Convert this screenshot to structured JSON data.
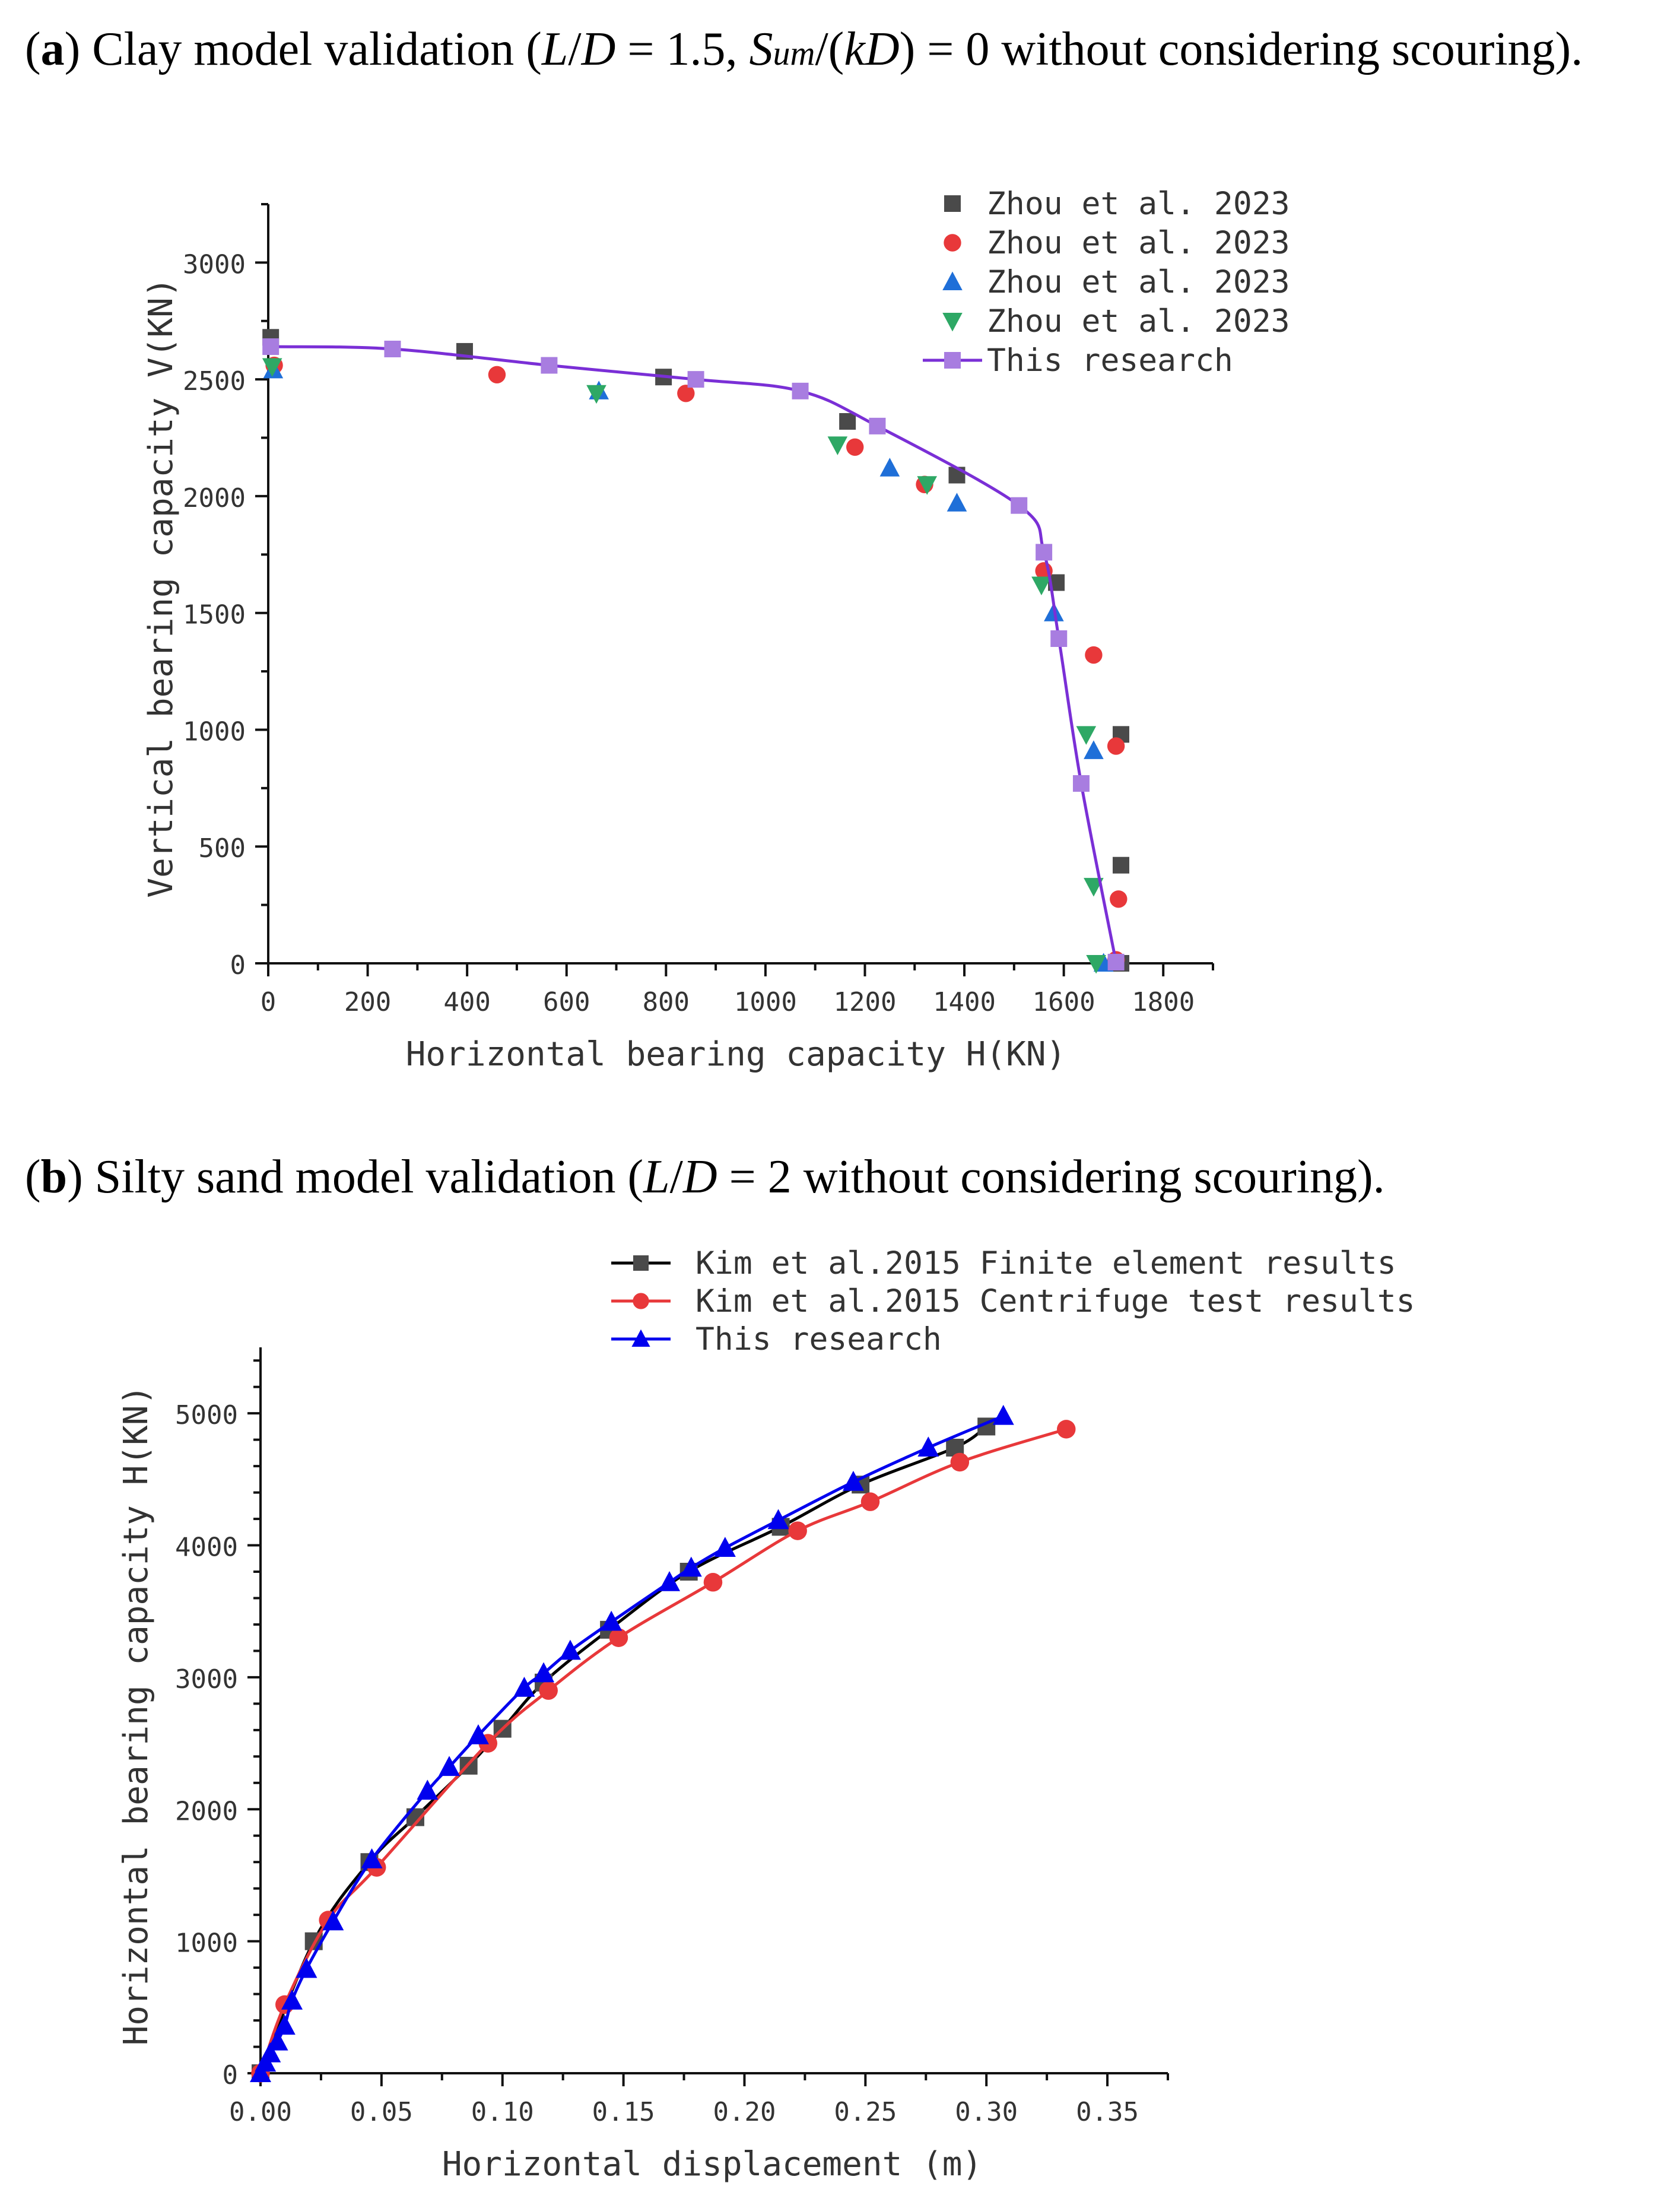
{
  "captions": {
    "a": {
      "label": "a",
      "part1": ") Clay model validation (",
      "L": "L",
      "slash1": "/",
      "D": "D",
      "part2": " = 1.5, ",
      "S": "S",
      "sub": "um",
      "part3": "/(",
      "kD": "kD",
      "part4": ") = 0 without considering scouring)."
    },
    "b": {
      "label": "b",
      "part1": ") Silty sand model validation (",
      "L": "L",
      "slash1": "/",
      "D": "D",
      "part2": " = 2 without considering scouring)."
    }
  },
  "chart_data": [
    {
      "type": "scatter",
      "xlabel": "Horizontal bearing capacity H(KN)",
      "ylabel": "Vertical bearing capacity V(KN)",
      "xlim": [
        0,
        1900
      ],
      "ylim": [
        0,
        3250
      ],
      "xticks": [
        0,
        200,
        400,
        600,
        800,
        1000,
        1200,
        1400,
        1600,
        1800
      ],
      "yticks": [
        0,
        500,
        1000,
        1500,
        2000,
        2500,
        3000
      ],
      "legend_position": "top-right",
      "series": [
        {
          "name": "Zhou et al. 2023",
          "marker": "square",
          "color": "#4a4a4a",
          "x": [
            5,
            395,
            795,
            1165,
            1385,
            1585,
            1715,
            1715,
            1715
          ],
          "y": [
            2680,
            2620,
            2510,
            2320,
            2090,
            1630,
            980,
            420,
            0
          ]
        },
        {
          "name": "Zhou et al. 2023",
          "marker": "circle",
          "color": "#e8383a",
          "x": [
            12,
            460,
            840,
            1180,
            1320,
            1560,
            1660,
            1705,
            1710,
            1705
          ],
          "y": [
            2560,
            2520,
            2440,
            2210,
            2050,
            1680,
            1320,
            930,
            275,
            15
          ]
        },
        {
          "name": "Zhou et al. 2023",
          "marker": "triangle-up",
          "color": "#1f6fd8",
          "x": [
            10,
            665,
            1250,
            1385,
            1580,
            1660,
            1680
          ],
          "y": [
            2540,
            2450,
            2120,
            1970,
            1500,
            910,
            0
          ]
        },
        {
          "name": "Zhou et al. 2023",
          "marker": "triangle-down",
          "color": "#2ea865",
          "x": [
            8,
            660,
            1145,
            1325,
            1555,
            1645,
            1660,
            1665
          ],
          "y": [
            2555,
            2440,
            2220,
            2050,
            1620,
            980,
            330,
            0
          ]
        },
        {
          "name": "This research",
          "marker": "square",
          "color": "#a87de0",
          "line_color": "#7a2fd6",
          "x": [
            5,
            250,
            565,
            860,
            1070,
            1225,
            1510,
            1560,
            1590,
            1635,
            1705
          ],
          "y": [
            2640,
            2630,
            2560,
            2500,
            2450,
            2300,
            1960,
            1760,
            1390,
            770,
            5
          ]
        }
      ]
    },
    {
      "type": "line",
      "xlabel": "Horizontal displacement (m)",
      "ylabel": "Horizontal bearing capacity H(KN)",
      "xlim": [
        0,
        0.375
      ],
      "ylim": [
        0,
        5500
      ],
      "xticks": [
        "0.00",
        "0.05",
        "0.10",
        "0.15",
        "0.20",
        "0.25",
        "0.30",
        "0.35"
      ],
      "yticks": [
        0,
        1000,
        2000,
        3000,
        4000,
        5000
      ],
      "legend_position": "top",
      "series": [
        {
          "name": "Kim et al.2015 Finite element results",
          "marker": "square",
          "color": "#4a4a4a",
          "line_color": "#000000",
          "x": [
            0.0,
            0.022,
            0.045,
            0.064,
            0.086,
            0.1,
            0.117,
            0.144,
            0.177,
            0.215,
            0.248,
            0.287,
            0.3
          ],
          "y": [
            0,
            1000,
            1600,
            1940,
            2330,
            2610,
            2960,
            3360,
            3800,
            4140,
            4460,
            4740,
            4900
          ]
        },
        {
          "name": "Kim et al.2015 Centrifuge test results",
          "marker": "circle",
          "color": "#e8383a",
          "line_color": "#e8383a",
          "x": [
            0.0,
            0.01,
            0.028,
            0.048,
            0.094,
            0.119,
            0.148,
            0.187,
            0.222,
            0.252,
            0.289,
            0.333
          ],
          "y": [
            0,
            520,
            1160,
            1560,
            2500,
            2900,
            3300,
            3720,
            4110,
            4330,
            4630,
            4880
          ]
        },
        {
          "name": "This research",
          "marker": "triangle-up",
          "color": "#0000ee",
          "line_color": "#0000ee",
          "x": [
            0.0,
            0.002,
            0.004,
            0.007,
            0.01,
            0.013,
            0.019,
            0.03,
            0.046,
            0.069,
            0.078,
            0.09,
            0.109,
            0.117,
            0.128,
            0.145,
            0.169,
            0.178,
            0.192,
            0.214,
            0.245,
            0.276,
            0.307
          ],
          "y": [
            0,
            80,
            150,
            240,
            360,
            550,
            790,
            1150,
            1620,
            2140,
            2320,
            2560,
            2920,
            3030,
            3200,
            3420,
            3720,
            3830,
            3980,
            4190,
            4480,
            4740,
            4980
          ]
        }
      ]
    }
  ]
}
